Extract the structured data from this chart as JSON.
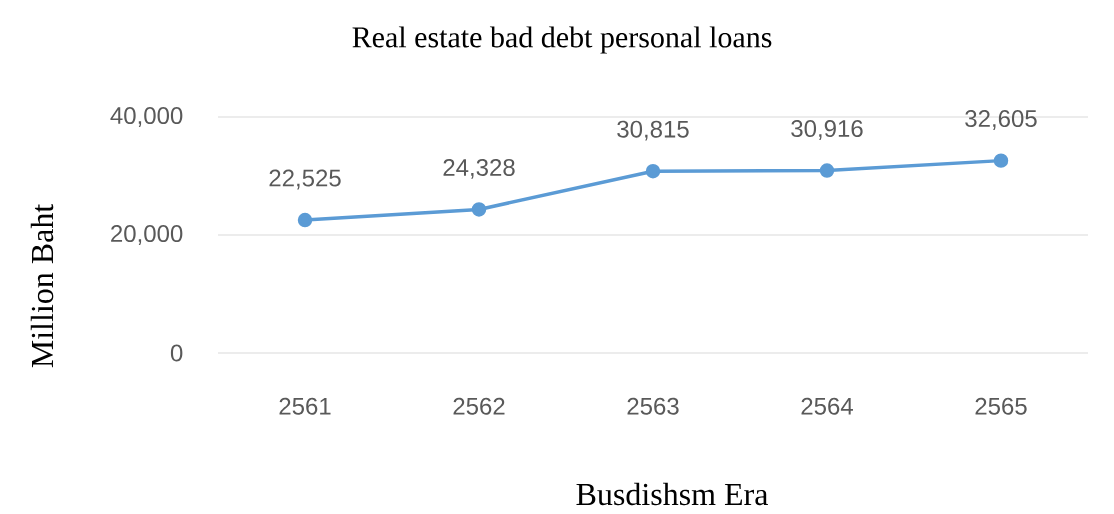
{
  "chart_data": {
    "type": "line",
    "title": "Real estate bad debt personal loans",
    "xlabel": "Busdishsm Era",
    "ylabel": "Million Baht",
    "categories": [
      "2561",
      "2562",
      "2563",
      "2564",
      "2565"
    ],
    "values": [
      22525,
      24328,
      30815,
      30916,
      32605
    ],
    "value_labels": [
      "22,525",
      "24,328",
      "30,815",
      "30,916",
      "32,605"
    ],
    "color": "#5b9bd5",
    "marker": "circle",
    "line_style": "solid",
    "ylim": [
      0,
      40000
    ],
    "yticks": [
      {
        "value": 0,
        "label": "0"
      },
      {
        "value": 20000,
        "label": "20,000"
      },
      {
        "value": 40000,
        "label": "40,000"
      }
    ],
    "grid": "y"
  }
}
